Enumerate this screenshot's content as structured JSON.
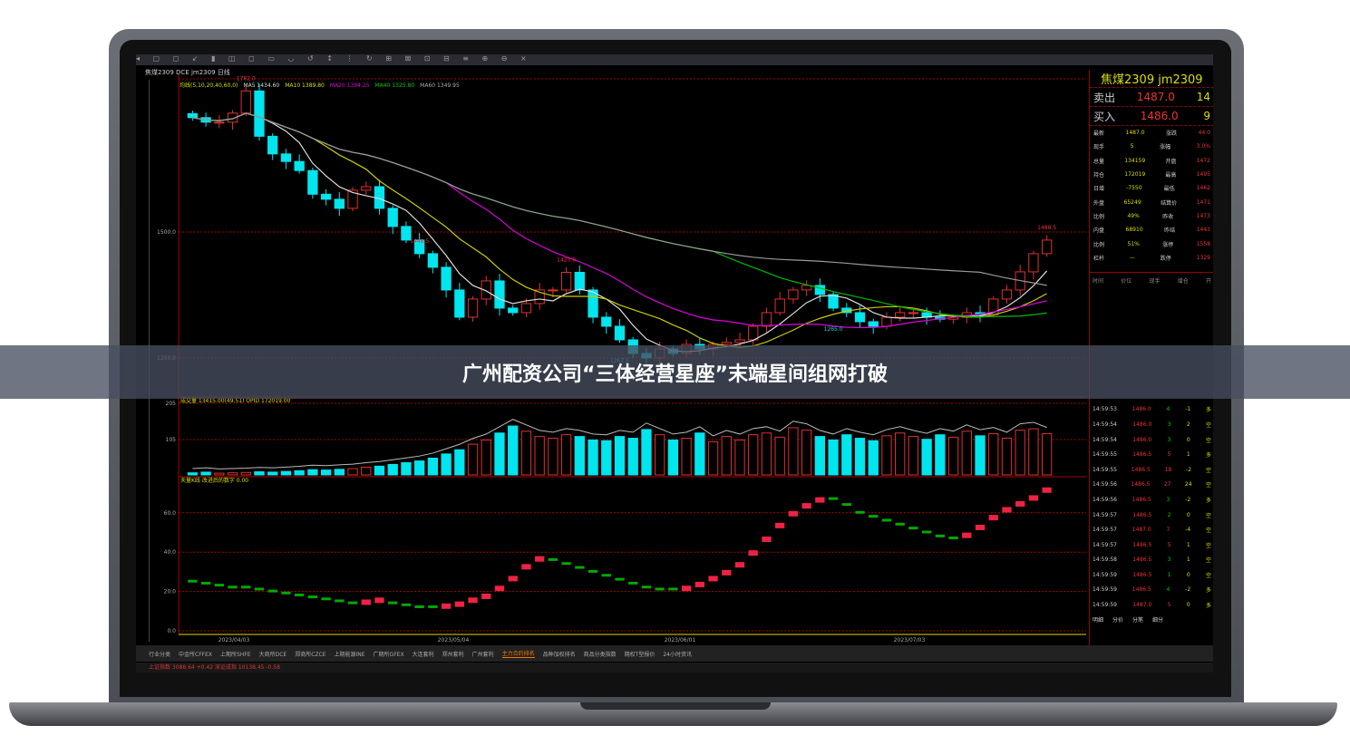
{
  "banner": {
    "title": "广州配资公司“三体经营星座”末端星间组网打破"
  },
  "app": {
    "symbol_line": "焦煤2309 DCE jm2309  日线",
    "ma_legend": [
      {
        "text": "均线(5,10,20,40,60,0)",
        "color": "#dddd00"
      },
      {
        "text": "MA5 1434.60",
        "color": "#dddddd"
      },
      {
        "text": "MA10 1389.80",
        "color": "#dddd00"
      },
      {
        "text": "MA20 1394.25",
        "color": "#dd00dd"
      },
      {
        "text": "MA40 1325.80",
        "color": "#00cc00"
      },
      {
        "text": "MA60 1349.95",
        "color": "#aaaaaa"
      }
    ],
    "volume_legend": "成交量 13415.00(49.51) OPID 172019.00",
    "indicator_legend": "天量K线 改进后的数字 0.00",
    "toolbar_text": "◂ ▢ ◻ ↙ ▮ ◫ ◻ ▭ ◡ ↺ ↕ ⋮ ↻ ⊞ ⊠ ⊡ ⊟ ≡ ⊕ ⊖ ⨯",
    "price_ticks": [
      "1500.0",
      "1250.0"
    ],
    "volume_ticks": [
      "205",
      "105"
    ],
    "indicator_ticks": [
      "60.0",
      "40.0",
      "20.0",
      "0.0"
    ],
    "dates": [
      "2023/04/03",
      "2023/05/04",
      "2023/06/01",
      "2023/07/03"
    ],
    "peak_labels": [
      "1782.0",
      "1448.5",
      "1267.5",
      "1265.0",
      "1420.0",
      "1488.5"
    ]
  },
  "chart_data": {
    "type": "candlestick",
    "ylim": [
      1200,
      1800
    ],
    "closes": [
      1727,
      1718,
      1718,
      1736,
      1780,
      1690,
      1655,
      1640,
      1622,
      1575,
      1565,
      1547,
      1583,
      1590,
      1547,
      1511,
      1484,
      1457,
      1430,
      1385,
      1331,
      1367,
      1403,
      1349,
      1340,
      1358,
      1385,
      1385,
      1420,
      1385,
      1331,
      1313,
      1286,
      1259,
      1250,
      1268,
      1259,
      1277,
      1268,
      1277,
      1281,
      1286,
      1313,
      1340,
      1367,
      1385,
      1394,
      1376,
      1349,
      1340,
      1322,
      1313,
      1331,
      1340,
      1340,
      1331,
      1327,
      1331,
      1340,
      1336,
      1367,
      1385,
      1421,
      1457,
      1484
    ],
    "volume": [
      6,
      8,
      5,
      6,
      7,
      9,
      8,
      10,
      12,
      15,
      14,
      16,
      18,
      22,
      25,
      30,
      35,
      40,
      48,
      60,
      72,
      88,
      100,
      120,
      140,
      125,
      110,
      105,
      115,
      110,
      100,
      98,
      110,
      105,
      130,
      115,
      100,
      105,
      120,
      95,
      110,
      100,
      115,
      120,
      108,
      135,
      128,
      110,
      100,
      115,
      105,
      98,
      112,
      120,
      110,
      102,
      115,
      108,
      125,
      112,
      118,
      105,
      128,
      132,
      118
    ],
    "indicator": [
      25,
      24,
      23,
      22,
      22,
      21,
      20,
      19,
      18,
      17,
      16,
      15,
      14,
      15,
      16,
      14,
      13,
      12,
      12,
      13,
      14,
      16,
      18,
      22,
      27,
      33,
      37,
      36,
      34,
      32,
      30,
      28,
      26,
      24,
      22,
      21,
      21,
      22,
      24,
      27,
      30,
      34,
      40,
      47,
      54,
      60,
      64,
      67,
      67,
      64,
      60,
      58,
      56,
      54,
      52,
      50,
      48,
      47,
      49,
      53,
      58,
      62,
      65,
      68,
      72
    ]
  },
  "quote": {
    "title": "焦煤2309  jm2309",
    "ask_label": "卖出",
    "ask": "1487.0",
    "ask_vol": "14",
    "bid_label": "买入",
    "bid": "1486.0",
    "bid_vol": "9",
    "rows": [
      [
        "最新",
        "1487.0",
        "涨跌",
        "44.0"
      ],
      [
        "现手",
        "5",
        "涨幅",
        "3.0%"
      ],
      [
        "总量",
        "134159",
        "开盘",
        "1472"
      ],
      [
        "持仓",
        "172019",
        "最高",
        "1495"
      ],
      [
        "日增",
        "-7550",
        "最低",
        "1462"
      ],
      [
        "外盘",
        "65249",
        "结算价",
        "1471"
      ],
      [
        "比例",
        "49%",
        "昨收",
        "1473"
      ],
      [
        "内盘",
        "68910",
        "昨结",
        "1443"
      ],
      [
        "比例",
        "51%",
        "涨停",
        "1558"
      ],
      [
        "杠杆",
        "—",
        "跌停",
        "1329"
      ]
    ],
    "trades_header": [
      "时间",
      "价位",
      "现手",
      "增仓",
      "开"
    ],
    "trades": [
      [
        "14:59:53",
        "1486.0",
        "4",
        "-1",
        "多"
      ],
      [
        "14:59:54",
        "1486.0",
        "3",
        "2",
        "空"
      ],
      [
        "14:59:54",
        "1486.0",
        "3",
        "0",
        "空"
      ],
      [
        "14:59:55",
        "1486.5",
        "5",
        "1",
        "多"
      ],
      [
        "14:59:55",
        "1486.5",
        "18",
        "-2",
        "空"
      ],
      [
        "14:59:56",
        "1486.5",
        "27",
        "24",
        "空"
      ],
      [
        "14:59:56",
        "1486.5",
        "3",
        "-2",
        "多"
      ],
      [
        "14:59:57",
        "1486.5",
        "2",
        "0",
        "空"
      ],
      [
        "14:59:57",
        "1487.0",
        "7",
        "-4",
        "空"
      ],
      [
        "14:59:57",
        "1486.5",
        "5",
        "1",
        "空"
      ],
      [
        "14:59:58",
        "1486.5",
        "3",
        "1",
        "空"
      ],
      [
        "14:59:59",
        "1486.5",
        "1",
        "0",
        "空"
      ],
      [
        "14:59:59",
        "1486.5",
        "4",
        "-2",
        "多"
      ],
      [
        "14:59:59",
        "1487.0",
        "5",
        "0",
        "多"
      ]
    ],
    "bottom_tabs": [
      "明细",
      "分价",
      "分笔",
      "细分"
    ]
  },
  "tabs": [
    "行业分类",
    "中金所CFFEX",
    "上期所SHFE",
    "大商所DCE",
    "郑商所CZCE",
    "上期能源INE",
    "广期所GFEX",
    "大连套利",
    "郑州套利",
    "广州套利",
    "主力合约排名",
    "品种加权排名",
    "商品分类指数",
    "期权T型报价",
    "24小时资讯"
  ],
  "active_tab": 10,
  "status": {
    "left": "上证指数 3088.64 +0.42   深证成指 10138.45 -0.58"
  },
  "colors": {
    "up": "#e03030",
    "down": "#00e5ee",
    "grid": "#aa0000",
    "indicator_up": "#ee2244",
    "indicator_down": "#00aa00"
  }
}
